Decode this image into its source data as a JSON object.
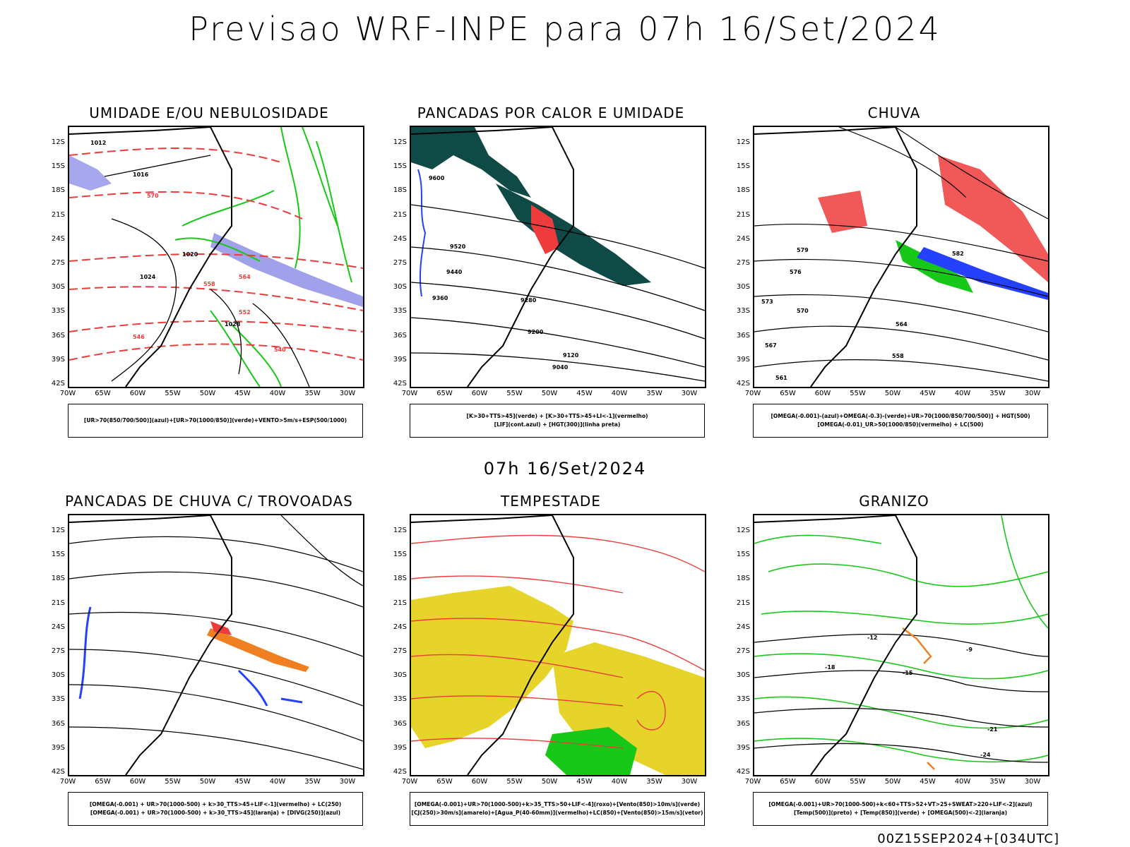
{
  "header": {
    "title": "Previsao WRF-INPE  para 07h 16/Set/2024"
  },
  "middle": {
    "time_label": "07h 16/Set/2024"
  },
  "footer": {
    "run_label": "00Z15SEP2024+[034UTC]"
  },
  "axes": {
    "lat_labels": [
      "12S",
      "15S",
      "18S",
      "21S",
      "24S",
      "27S",
      "30S",
      "33S",
      "36S",
      "39S",
      "42S"
    ],
    "lon_labels": [
      "70W",
      "65W",
      "60W",
      "55W",
      "50W",
      "45W",
      "40W",
      "35W",
      "30W"
    ]
  },
  "colors": {
    "red": "#ee3b3b",
    "green": "#18c818",
    "blue": "#2540ff",
    "dark_teal": "#0f4a46",
    "yellow": "#e6d42a",
    "orange": "#ef7f20",
    "lavender": "#9090e8"
  },
  "panels": [
    {
      "title": "UMIDADE E/OU NEBULOSIDADE",
      "legend": [
        "[UR>70(850/700/500)](azul)+[UR>70(1000/850)](verde)+VENTO>5m/s+ESP(500/1000)"
      ],
      "contour_labels": [
        "1012",
        "1016",
        "1020",
        "1024",
        "1028",
        "570",
        "564",
        "558",
        "552",
        "546",
        "540"
      ]
    },
    {
      "title": "PANCADAS POR CALOR E UMIDADE",
      "legend": [
        "[K>30+TTS>45](verde) + [K>30+TTS>45+LI<-1](vermelho)",
        "[LIF](cont.azul) + [HGT(300)](linha preta)"
      ],
      "contour_labels": [
        "9600",
        "9520",
        "9440",
        "9360",
        "9280",
        "9200",
        "9120",
        "9040"
      ]
    },
    {
      "title": "CHUVA",
      "legend": [
        "[OMEGA(-0.001)-(azul)+OMEGA(-0.3)-(verde)+UR>70(1000/850/700/500)] + HGT(500)",
        "[OMEGA(-0.01)_UR>50(1000/850)(vermelho) + LC(500)"
      ],
      "contour_labels": [
        "582",
        "579",
        "576",
        "573",
        "570",
        "567",
        "564",
        "561",
        "558"
      ]
    },
    {
      "title": "PANCADAS DE CHUVA C/ TROVOADAS",
      "legend": [
        "[OMEGA(-0.001) + UR>70(1000-500) + k>30_TTS>45+LIF<-1](vermelho) + LC(250)",
        "[OMEGA(-0.001) + UR>70(1000-500) + k>30_TTS>45](laranja) + [DIVG(250)](azul)"
      ],
      "contour_labels": []
    },
    {
      "title": "TEMPESTADE",
      "legend": [
        "[OMEGA(-0.001)+UR>70(1000-500)+k>35_TTS>50+LIF<-4](roxo)+[Vento(850)>10m/s](verde)",
        "[CJ(250)>30m/s](amarelo)+[Agua_P(40-60mm)](vermelho)+LC(850)+[Vento(850)>15m/s](vetor)"
      ],
      "contour_labels": []
    },
    {
      "title": "GRANIZO",
      "legend": [
        "[OMEGA(-0.001)+UR>70(1000-500)+k<60+TTS>52+VT>25+SWEAT>220+LIF<-2](azul)",
        "[Temp(500)](preto) + [Temp(850)](verde) + [OMEGA(500)<-2](laranja)"
      ],
      "contour_labels": [
        "-9",
        "-12",
        "-15",
        "-18",
        "-21",
        "-24"
      ]
    }
  ]
}
